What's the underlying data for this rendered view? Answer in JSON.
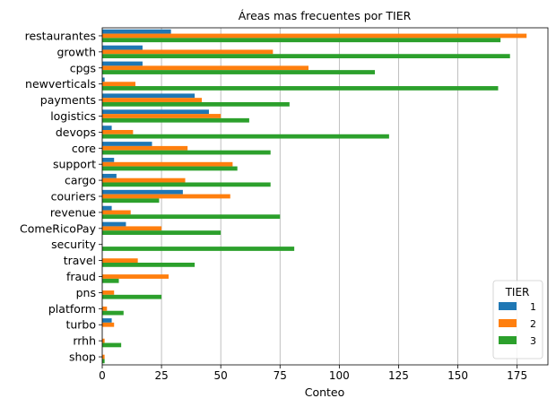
{
  "chart_data": {
    "type": "bar",
    "orientation": "horizontal",
    "title": "Áreas mas frecuentes por TIER",
    "xlabel": "Conteo",
    "ylabel": "",
    "xlim": [
      0,
      188
    ],
    "x_ticks": [
      0,
      25,
      50,
      75,
      100,
      125,
      150,
      175
    ],
    "grid": "vertical",
    "legend": {
      "title": "TIER",
      "placement": "bottom-right"
    },
    "categories": [
      "restaurantes",
      "growth",
      "cpgs",
      "newverticals",
      "payments",
      "logistics",
      "devops",
      "core",
      "support",
      "cargo",
      "couriers",
      "revenue",
      "ComeRicoPay",
      "security",
      "travel",
      "fraud",
      "pns",
      "platform",
      "turbo",
      "rrhh",
      "shop"
    ],
    "series": [
      {
        "name": "1",
        "color": "#1f77b4",
        "values": [
          29,
          17,
          17,
          1,
          39,
          45,
          4,
          21,
          5,
          6,
          34,
          4,
          10,
          0,
          0,
          0,
          0,
          0,
          4,
          0,
          0
        ]
      },
      {
        "name": "2",
        "color": "#ff7f0e",
        "values": [
          179,
          72,
          87,
          14,
          42,
          50,
          13,
          36,
          55,
          35,
          54,
          12,
          25,
          0,
          15,
          28,
          5,
          2,
          5,
          1,
          1
        ]
      },
      {
        "name": "3",
        "color": "#2ca02c",
        "values": [
          168,
          172,
          115,
          167,
          79,
          62,
          121,
          71,
          57,
          71,
          24,
          75,
          50,
          81,
          39,
          7,
          25,
          9,
          0,
          8,
          1
        ]
      }
    ]
  }
}
